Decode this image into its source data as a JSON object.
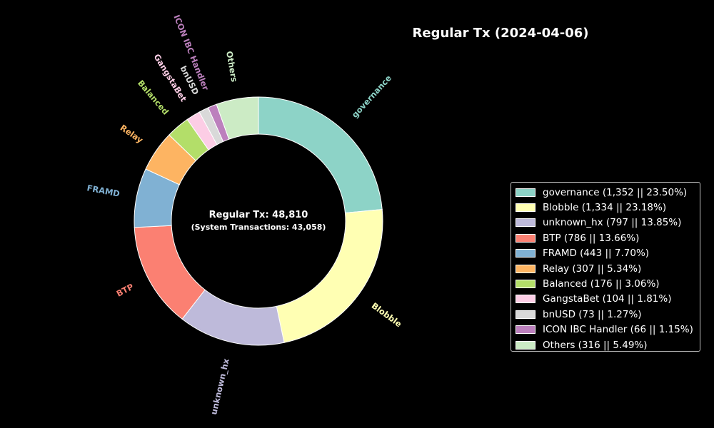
{
  "chart_data": {
    "type": "pie",
    "title": "Regular Tx (2024-04-06)",
    "center_text": {
      "main": "Regular Tx: 48,810",
      "sub": "(System Transactions: 43,058)"
    },
    "slices": [
      {
        "label": "governance",
        "value": 1352,
        "percent": 23.5,
        "color": "#8dd3c7",
        "legend": "governance (1,352 || 23.50%)"
      },
      {
        "label": "Blobble",
        "value": 1334,
        "percent": 23.18,
        "color": "#ffffb3",
        "legend": "Blobble (1,334 || 23.18%)"
      },
      {
        "label": "unknown_hx",
        "value": 797,
        "percent": 13.85,
        "color": "#bebada",
        "legend": "unknown_hx (797 || 13.85%)"
      },
      {
        "label": "BTP",
        "value": 786,
        "percent": 13.66,
        "color": "#fb8072",
        "legend": "BTP (786 || 13.66%)"
      },
      {
        "label": "FRAMD",
        "value": 443,
        "percent": 7.7,
        "color": "#80b1d3",
        "legend": "FRAMD (443 || 7.70%)"
      },
      {
        "label": "Relay",
        "value": 307,
        "percent": 5.34,
        "color": "#fdb462",
        "legend": "Relay (307 || 5.34%)"
      },
      {
        "label": "Balanced",
        "value": 176,
        "percent": 3.06,
        "color": "#b3de69",
        "legend": "Balanced (176 || 3.06%)"
      },
      {
        "label": "GangstaBet",
        "value": 104,
        "percent": 1.81,
        "color": "#fccde5",
        "legend": "GangstaBet (104 || 1.81%)"
      },
      {
        "label": "bnUSD",
        "value": 73,
        "percent": 1.27,
        "color": "#d9d9d9",
        "legend": "bnUSD (73 || 1.27%)"
      },
      {
        "label": "ICON IBC Handler",
        "value": 66,
        "percent": 1.15,
        "color": "#bc80bd",
        "legend": "ICON IBC Handler (66 || 1.15%)"
      },
      {
        "label": "Others",
        "value": 316,
        "percent": 5.49,
        "color": "#ccebc5",
        "legend": "Others (316 || 5.49%)"
      }
    ],
    "legend_position": "right"
  }
}
